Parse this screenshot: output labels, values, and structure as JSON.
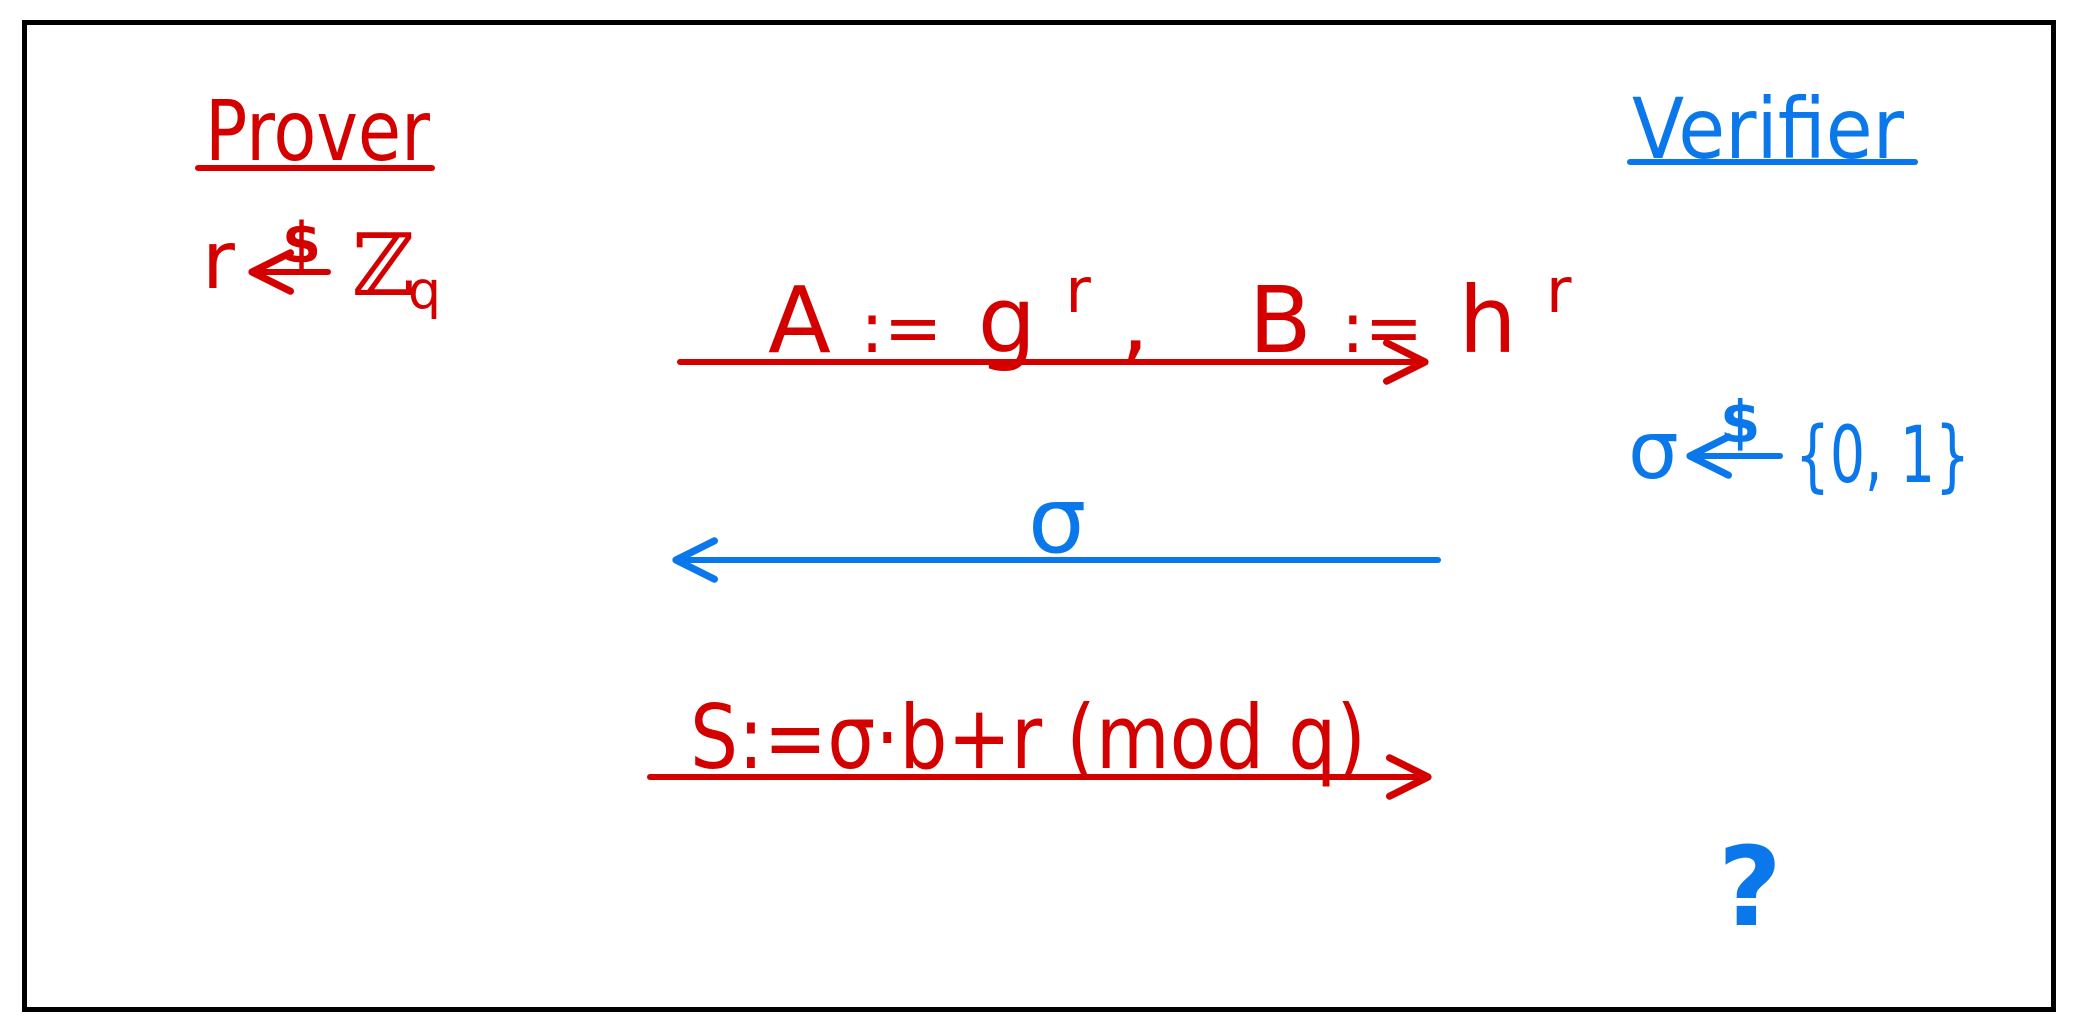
{
  "colors": {
    "prover": "#d40000",
    "verifier": "#0a78ea",
    "border": "#000000"
  },
  "prover": {
    "title": "Prover",
    "sample": {
      "var": "r",
      "dollar": "$",
      "set": "ℤ",
      "set_sub": "q"
    }
  },
  "verifier": {
    "title": "Verifier",
    "sample": {
      "var": "σ",
      "dollar": "$",
      "set": "{0, 1}"
    },
    "check": "?"
  },
  "messages": {
    "m1": {
      "a_lhs": "A",
      "a_assign": ":=",
      "a_base": "g",
      "a_exp": "r",
      "comma": ",",
      "b_lhs": "B",
      "b_assign": ":=",
      "b_base": "h",
      "b_exp": "r"
    },
    "m2": {
      "label": "σ"
    },
    "m3": {
      "label": "S:=σ·b+r (mod q)"
    }
  }
}
